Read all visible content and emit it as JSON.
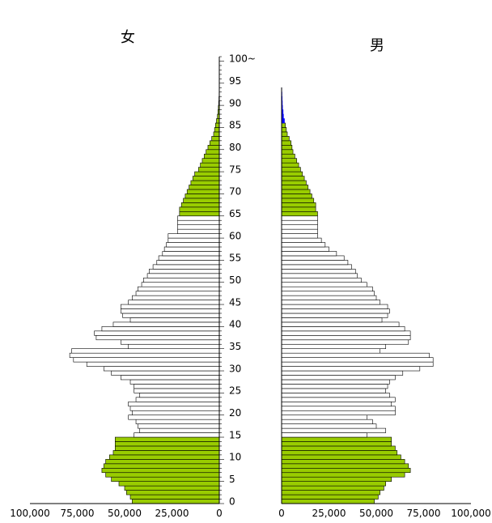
{
  "chart_data": {
    "type": "bar",
    "orientation": "horizontal-pyramid",
    "title_female": "女",
    "title_male": "男",
    "age_tick_labels": [
      "0",
      "5",
      "10",
      "15",
      "20",
      "25",
      "30",
      "35",
      "40",
      "45",
      "50",
      "55",
      "60",
      "65",
      "70",
      "75",
      "80",
      "85",
      "90",
      "95",
      "100~"
    ],
    "female_axis_ticks": [
      "100,000",
      "75,000",
      "50,000",
      "25,000",
      "0"
    ],
    "male_axis_ticks": [
      "0",
      "25,000",
      "50,000",
      "75,000",
      "100,000"
    ],
    "xlim": [
      0,
      100000
    ],
    "highlight_ranges": [
      "0-14",
      "65+"
    ],
    "colors": {
      "highlight": "#99cc00",
      "normal": "#ffffff",
      "outline": "#000000",
      "male_tail": "#0000ff"
    },
    "ages": [
      0,
      1,
      2,
      3,
      4,
      5,
      6,
      7,
      8,
      9,
      10,
      11,
      12,
      13,
      14,
      15,
      16,
      17,
      18,
      19,
      20,
      21,
      22,
      23,
      24,
      25,
      26,
      27,
      28,
      29,
      30,
      31,
      32,
      33,
      34,
      35,
      36,
      37,
      38,
      39,
      40,
      41,
      42,
      43,
      44,
      45,
      46,
      47,
      48,
      49,
      50,
      51,
      52,
      53,
      54,
      55,
      56,
      57,
      58,
      59,
      60,
      61,
      62,
      63,
      64,
      65,
      66,
      67,
      68,
      69,
      70,
      71,
      72,
      73,
      74,
      75,
      76,
      77,
      78,
      79,
      80,
      81,
      82,
      83,
      84,
      85,
      86,
      87,
      88,
      89,
      90,
      91,
      92,
      93,
      94,
      95,
      96,
      97,
      98,
      99,
      100
    ],
    "series": [
      {
        "name": "女",
        "values": [
          46000,
          47000,
          49000,
          50000,
          53000,
          57000,
          60000,
          62000,
          61000,
          60000,
          58000,
          56000,
          55000,
          55000,
          55000,
          45000,
          42000,
          43000,
          44000,
          48000,
          46000,
          47000,
          48000,
          44000,
          42000,
          45000,
          45000,
          47000,
          52000,
          57000,
          61000,
          70000,
          77000,
          79000,
          78000,
          48000,
          52000,
          65000,
          66000,
          62000,
          56000,
          47000,
          51000,
          52000,
          52000,
          48000,
          46000,
          44000,
          43000,
          41000,
          40000,
          38000,
          37000,
          35000,
          33000,
          32000,
          30000,
          29000,
          28000,
          27000,
          27000,
          22000,
          22000,
          22000,
          22000,
          21000,
          21000,
          20000,
          19000,
          18000,
          17000,
          16000,
          15000,
          14000,
          13000,
          11000,
          10000,
          9000,
          8000,
          7000,
          6000,
          5000,
          4000,
          3000,
          2500,
          2000,
          1500,
          1000,
          700,
          500,
          300,
          200,
          100,
          50,
          0,
          0,
          0,
          0,
          0,
          0,
          0
        ]
      },
      {
        "name": "男",
        "values": [
          49000,
          51000,
          52000,
          54000,
          55000,
          58000,
          65000,
          68000,
          67000,
          65000,
          63000,
          61000,
          60000,
          58000,
          58000,
          45000,
          55000,
          50000,
          48000,
          45000,
          60000,
          60000,
          58000,
          60000,
          57000,
          55000,
          56000,
          57000,
          60000,
          64000,
          73000,
          80000,
          80000,
          78000,
          52000,
          55000,
          67000,
          68000,
          68000,
          65000,
          62000,
          53000,
          56000,
          57000,
          56000,
          52000,
          50000,
          49000,
          48000,
          45000,
          42000,
          40000,
          39000,
          37000,
          35000,
          33000,
          29000,
          25000,
          23000,
          21000,
          19000,
          19000,
          19000,
          19000,
          19000,
          19000,
          18000,
          18000,
          17000,
          16000,
          15000,
          14000,
          13000,
          12000,
          11000,
          10000,
          9000,
          8000,
          7000,
          6000,
          5500,
          5000,
          4000,
          3000,
          2500,
          2000,
          1500,
          1000,
          800,
          500,
          400,
          300,
          200,
          100,
          0,
          0,
          0,
          0,
          0,
          0,
          0
        ]
      }
    ]
  }
}
